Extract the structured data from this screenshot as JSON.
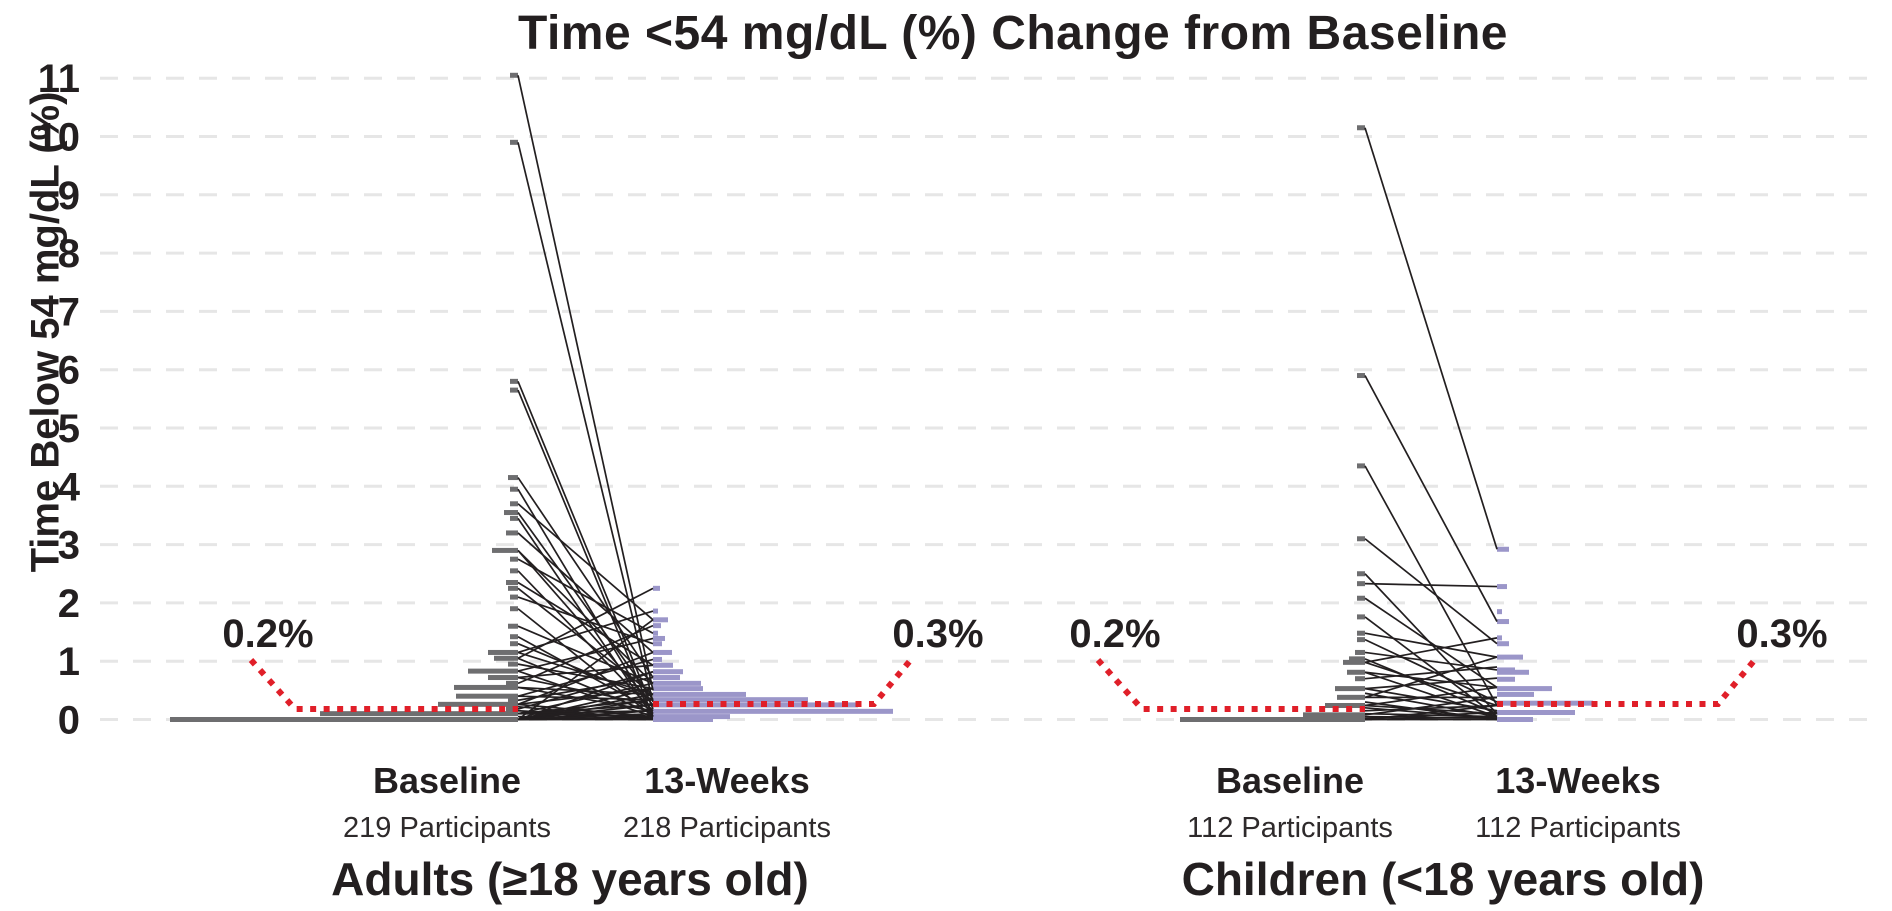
{
  "figure": {
    "title": "Time <54 mg/dL (%) Change from Baseline",
    "y_axis_label": "Time Below 54 mg/dL (%)"
  },
  "colors": {
    "text": "#231f20",
    "slope_line": "#231f20",
    "baseline_bar": "#6e6e70",
    "week13_bar": "#9b96c9",
    "median_dotted": "#e01f29",
    "gridline": "#e6e6e6"
  },
  "chart_data": {
    "type": "slopegraph-with-marginal-histograms (paired individual change plot)",
    "title": "Time <54 mg/dL (%) Change from Baseline",
    "ylabel": "Time Below 54 mg/dL (%)",
    "ylim": [
      0,
      11
    ],
    "yticks": [
      0,
      1,
      2,
      3,
      4,
      5,
      6,
      7,
      8,
      9,
      10,
      11
    ],
    "grid": true,
    "legend_position": "none",
    "panels": [
      {
        "title": "Adults (≥18 years old)",
        "columns": [
          {
            "label": "Baseline",
            "participants": "219 Participants",
            "median_label": "0.2%",
            "median_value": 0.2
          },
          {
            "label": "13-Weeks",
            "participants": "218 Participants",
            "median_label": "0.3%",
            "median_value": 0.3
          }
        ],
        "pairs": [
          [
            11.05,
            0.5
          ],
          [
            9.9,
            0.3
          ],
          [
            5.8,
            0.18
          ],
          [
            5.65,
            0.05
          ],
          [
            4.15,
            0.72
          ],
          [
            3.95,
            0.1
          ],
          [
            3.7,
            1.71
          ],
          [
            3.55,
            0.34
          ],
          [
            3.45,
            0.05
          ],
          [
            3.2,
            1.15
          ],
          [
            2.9,
            0.62
          ],
          [
            2.9,
            0.25
          ],
          [
            2.75,
            1.48
          ],
          [
            2.55,
            0.15
          ],
          [
            2.35,
            0.93
          ],
          [
            2.25,
            0.43
          ],
          [
            2.1,
            1.3
          ],
          [
            1.9,
            0.05
          ],
          [
            1.6,
            0.62
          ],
          [
            1.42,
            0.15
          ],
          [
            1.3,
            0.34
          ],
          [
            1.15,
            1.86
          ],
          [
            1.15,
            0.43
          ],
          [
            1.05,
            2.25
          ],
          [
            1.05,
            0.1
          ],
          [
            0.95,
            0.53
          ],
          [
            0.83,
            1.39
          ],
          [
            0.83,
            0.05
          ],
          [
            0.72,
            0.93
          ],
          [
            0.72,
            0.25
          ],
          [
            0.62,
            1.61
          ],
          [
            0.55,
            0.43
          ],
          [
            0.55,
            0.15
          ],
          [
            0.4,
            1.03
          ],
          [
            0.4,
            0.34
          ],
          [
            0.33,
            0.72
          ],
          [
            0.26,
            1.15
          ],
          [
            0.26,
            0.53
          ],
          [
            0.26,
            0.05
          ],
          [
            0.18,
            0.82
          ],
          [
            0.1,
            0.62
          ],
          [
            0.1,
            0.34
          ],
          [
            0.1,
            0.25
          ],
          [
            0.1,
            0.15
          ],
          [
            0.1,
            0.05
          ],
          [
            0,
            1.71
          ],
          [
            0,
            0.82
          ],
          [
            0,
            0.53
          ],
          [
            0,
            0.43
          ],
          [
            0,
            0.34
          ],
          [
            0,
            0.25
          ],
          [
            0,
            0.15
          ],
          [
            0,
            0.1
          ],
          [
            0,
            0.05
          ],
          [
            0,
            0.02
          ],
          [
            0,
            0
          ],
          [
            0.05,
            0
          ],
          [
            0.15,
            0.02
          ],
          [
            0.22,
            0
          ]
        ],
        "baseline_histogram": [
          [
            11.05,
            8
          ],
          [
            9.9,
            8
          ],
          [
            5.8,
            8
          ],
          [
            5.65,
            8
          ],
          [
            4.15,
            10
          ],
          [
            3.95,
            8
          ],
          [
            3.7,
            8
          ],
          [
            3.55,
            14
          ],
          [
            3.45,
            8
          ],
          [
            3.2,
            12
          ],
          [
            2.9,
            26
          ],
          [
            2.75,
            8
          ],
          [
            2.55,
            8
          ],
          [
            2.35,
            12
          ],
          [
            2.25,
            10
          ],
          [
            2.1,
            8
          ],
          [
            1.9,
            8
          ],
          [
            1.6,
            10
          ],
          [
            1.42,
            8
          ],
          [
            1.3,
            8
          ],
          [
            1.15,
            30
          ],
          [
            1.05,
            24
          ],
          [
            0.95,
            10
          ],
          [
            0.83,
            50
          ],
          [
            0.72,
            30
          ],
          [
            0.62,
            12
          ],
          [
            0.55,
            64
          ],
          [
            0.4,
            62
          ],
          [
            0.33,
            10
          ],
          [
            0.26,
            80
          ],
          [
            0.18,
            12
          ],
          [
            0.1,
            198
          ],
          [
            0,
            348
          ]
        ],
        "week13_histogram": [
          [
            2.25,
            7
          ],
          [
            1.86,
            5
          ],
          [
            1.71,
            15
          ],
          [
            1.61,
            8
          ],
          [
            1.48,
            5
          ],
          [
            1.39,
            12
          ],
          [
            1.3,
            9
          ],
          [
            1.15,
            19
          ],
          [
            1.03,
            9
          ],
          [
            0.93,
            20
          ],
          [
            0.82,
            30
          ],
          [
            0.72,
            27
          ],
          [
            0.62,
            48
          ],
          [
            0.53,
            50
          ],
          [
            0.43,
            93
          ],
          [
            0.34,
            155
          ],
          [
            0.25,
            205
          ],
          [
            0.14,
            240
          ],
          [
            0.05,
            77
          ],
          [
            0,
            60
          ]
        ]
      },
      {
        "title": "Children (<18 years old)",
        "columns": [
          {
            "label": "Baseline",
            "participants": "112 Participants",
            "median_label": "0.2%",
            "median_value": 0.2
          },
          {
            "label": "13-Weeks",
            "participants": "112 Participants",
            "median_label": "0.3%",
            "median_value": 0.3
          }
        ],
        "pairs": [
          [
            10.15,
            2.92
          ],
          [
            5.9,
            1.68
          ],
          [
            4.35,
            0.24
          ],
          [
            3.1,
            1.3
          ],
          [
            2.5,
            0.1
          ],
          [
            2.33,
            2.28
          ],
          [
            2.08,
            0.55
          ],
          [
            1.76,
            0.05
          ],
          [
            1.48,
            1.07
          ],
          [
            1.37,
            0.3
          ],
          [
            1.15,
            0.85
          ],
          [
            1.04,
            0.1
          ],
          [
            0.98,
            1.4
          ],
          [
            0.98,
            0.24
          ],
          [
            0.81,
            0.55
          ],
          [
            0.81,
            0.05
          ],
          [
            0.7,
            0.9
          ],
          [
            0.53,
            0.15
          ],
          [
            0.53,
            0.71
          ],
          [
            0.45,
            0.05
          ],
          [
            0.38,
            0.38
          ],
          [
            0.38,
            1.07
          ],
          [
            0.24,
            0.1
          ],
          [
            0.24,
            0.55
          ],
          [
            0.2,
            0.02
          ],
          [
            0.15,
            0.24
          ],
          [
            0.1,
            0.05
          ],
          [
            0.08,
            0.38
          ],
          [
            0.05,
            0.02
          ],
          [
            0.02,
            0.12
          ],
          [
            0,
            0.05
          ],
          [
            0,
            0
          ],
          [
            0,
            0.24
          ],
          [
            0.3,
            0
          ]
        ],
        "baseline_histogram": [
          [
            10.15,
            8
          ],
          [
            5.9,
            8
          ],
          [
            4.35,
            8
          ],
          [
            3.1,
            8
          ],
          [
            2.5,
            8
          ],
          [
            2.33,
            8
          ],
          [
            2.08,
            8
          ],
          [
            1.76,
            8
          ],
          [
            1.48,
            8
          ],
          [
            1.37,
            8
          ],
          [
            1.15,
            10
          ],
          [
            1.04,
            16
          ],
          [
            0.98,
            22
          ],
          [
            0.81,
            18
          ],
          [
            0.7,
            10
          ],
          [
            0.53,
            30
          ],
          [
            0.38,
            28
          ],
          [
            0.24,
            40
          ],
          [
            0.08,
            62
          ],
          [
            0,
            185
          ]
        ],
        "week13_histogram": [
          [
            2.92,
            12
          ],
          [
            2.28,
            10
          ],
          [
            1.85,
            5
          ],
          [
            1.68,
            12
          ],
          [
            1.4,
            5
          ],
          [
            1.3,
            12
          ],
          [
            1.07,
            26
          ],
          [
            0.85,
            18
          ],
          [
            0.81,
            32
          ],
          [
            0.69,
            18
          ],
          [
            0.53,
            55
          ],
          [
            0.43,
            37
          ],
          [
            0.28,
            96
          ],
          [
            0.12,
            78
          ],
          [
            0,
            36
          ]
        ]
      }
    ]
  }
}
